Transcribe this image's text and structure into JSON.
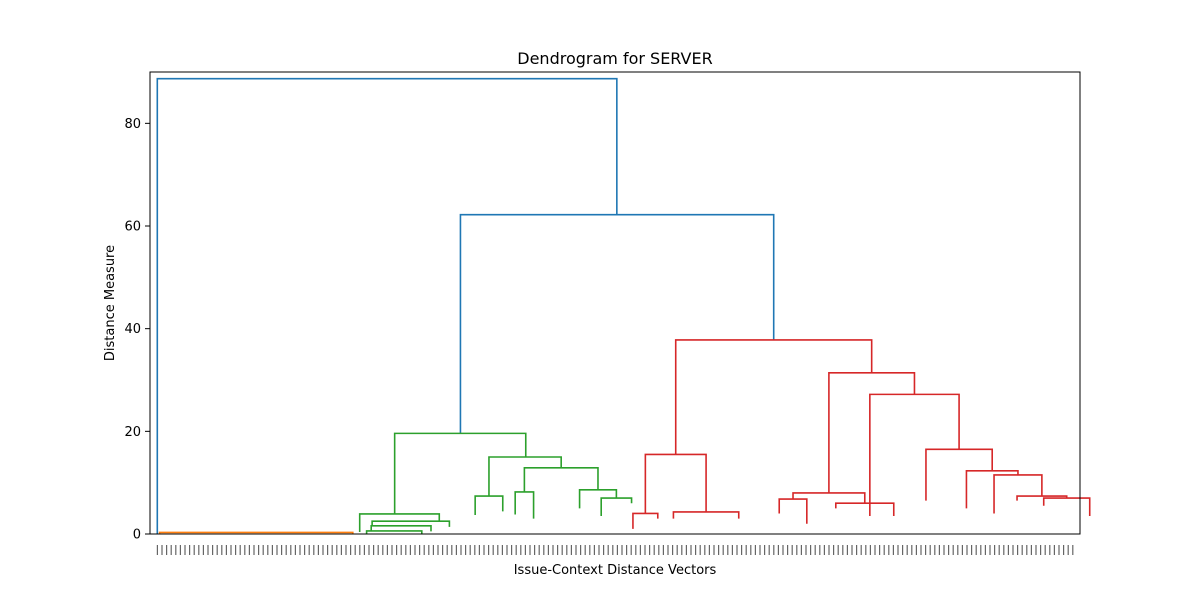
{
  "chart_data": {
    "type": "dendrogram",
    "title": "Dendrogram for SERVER",
    "xlabel": "Issue-Context Distance Vectors",
    "ylabel": "Distance Measure",
    "ylim": [
      0,
      90
    ],
    "yticks": [
      0,
      20,
      40,
      60,
      80
    ],
    "grid": false,
    "colors": {
      "root": "#1f77b4",
      "orange_cluster": "#ff7f0e",
      "green_cluster": "#2ca02c",
      "red_cluster": "#d62728"
    },
    "leaf_count": 200,
    "links": [
      {
        "color": "#1f77b4",
        "left_x": 0.5,
        "right_x": 100.4,
        "height": 88.7,
        "left_h": 0,
        "right_h": 62.2
      },
      {
        "color": "#1f77b4",
        "left_x": 66.4,
        "right_x": 134.5,
        "height": 62.2,
        "left_h": 19.6,
        "right_h": 37.8
      },
      {
        "color": "#ff7f0e",
        "left_x": 1,
        "right_x": 43,
        "height": 0.3,
        "left_h": 0,
        "right_h": 0
      },
      {
        "color": "#2ca02c",
        "left_x": 52.1,
        "right_x": 80.6,
        "height": 19.6,
        "left_h": 3.9,
        "right_h": 15.0
      },
      {
        "color": "#2ca02c",
        "left_x": 44.5,
        "right_x": 61.8,
        "height": 3.9,
        "left_h": 0.4,
        "right_h": 2.5
      },
      {
        "color": "#2ca02c",
        "left_x": 47.2,
        "right_x": 64.0,
        "height": 2.5,
        "left_h": 1.5,
        "right_h": 1.4
      },
      {
        "color": "#2ca02c",
        "left_x": 47.0,
        "right_x": 60.0,
        "height": 1.6,
        "left_h": 0.6,
        "right_h": 0.5
      },
      {
        "color": "#2ca02c",
        "left_x": 46.0,
        "right_x": 58.0,
        "height": 0.6,
        "left_h": 0,
        "right_h": 0
      },
      {
        "color": "#2ca02c",
        "left_x": 72.6,
        "right_x": 88.3,
        "height": 15.0,
        "left_h": 7.4,
        "right_h": 12.9
      },
      {
        "color": "#2ca02c",
        "left_x": 69.6,
        "right_x": 75.6,
        "height": 7.4,
        "left_h": 3.7,
        "right_h": 4.4
      },
      {
        "color": "#2ca02c",
        "left_x": 80.3,
        "right_x": 96.3,
        "height": 12.9,
        "left_h": 8.2,
        "right_h": 8.6
      },
      {
        "color": "#2ca02c",
        "left_x": 78.3,
        "right_x": 82.3,
        "height": 8.2,
        "left_h": 3.8,
        "right_h": 3.0
      },
      {
        "color": "#2ca02c",
        "left_x": 92.3,
        "right_x": 100.3,
        "height": 8.6,
        "left_h": 5.0,
        "right_h": 7.0
      },
      {
        "color": "#2ca02c",
        "left_x": 97.0,
        "right_x": 103.6,
        "height": 7.0,
        "left_h": 3.5,
        "right_h": 6.0
      },
      {
        "color": "#d62728",
        "left_x": 113.2,
        "right_x": 155.8,
        "height": 37.8,
        "left_h": 15.5,
        "right_h": 31.4
      },
      {
        "color": "#d62728",
        "left_x": 106.6,
        "right_x": 119.8,
        "height": 15.5,
        "left_h": 4.0,
        "right_h": 4.3
      },
      {
        "color": "#d62728",
        "left_x": 103.9,
        "right_x": 109.3,
        "height": 4.0,
        "left_h": 1.0,
        "right_h": 3.0
      },
      {
        "color": "#d62728",
        "left_x": 112.7,
        "right_x": 126.9,
        "height": 4.3,
        "left_h": 3.0,
        "right_h": 3.0
      },
      {
        "color": "#d62728",
        "left_x": 146.5,
        "right_x": 165.1,
        "height": 31.4,
        "left_h": 8.0,
        "right_h": 27.2
      },
      {
        "color": "#d62728",
        "left_x": 138.7,
        "right_x": 154.3,
        "height": 8.0,
        "left_h": 6.8,
        "right_h": 6.0
      },
      {
        "color": "#d62728",
        "left_x": 135.7,
        "right_x": 141.7,
        "height": 6.8,
        "left_h": 4.0,
        "right_h": 2.0
      },
      {
        "color": "#d62728",
        "left_x": 148.0,
        "right_x": 160.6,
        "height": 6.0,
        "left_h": 5.0,
        "right_h": 3.5
      },
      {
        "color": "#d62728",
        "left_x": 155.4,
        "right_x": 174.8,
        "height": 27.2,
        "left_h": 3.5,
        "right_h": 16.5
      },
      {
        "color": "#d62728",
        "left_x": 167.6,
        "right_x": 182.0,
        "height": 16.5,
        "left_h": 6.5,
        "right_h": 12.3
      },
      {
        "color": "#d62728",
        "left_x": 176.4,
        "right_x": 187.6,
        "height": 12.3,
        "left_h": 5.0,
        "right_h": 11.5
      },
      {
        "color": "#d62728",
        "left_x": 182.4,
        "right_x": 192.8,
        "height": 11.5,
        "left_h": 4.0,
        "right_h": 7.4
      },
      {
        "color": "#d62728",
        "left_x": 187.4,
        "right_x": 198.2,
        "height": 7.4,
        "left_h": 6.5,
        "right_h": 7.0
      },
      {
        "color": "#d62728",
        "left_x": 193.2,
        "right_x": 203.2,
        "height": 7.0,
        "left_h": 5.5,
        "right_h": 3.5
      }
    ]
  }
}
